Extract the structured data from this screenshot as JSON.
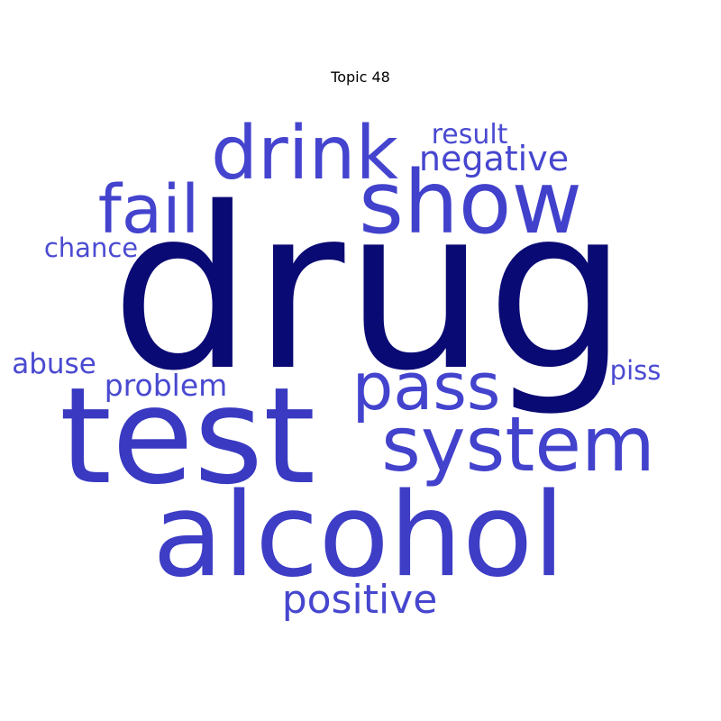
{
  "title": "Topic 48",
  "colors": {
    "background": "#ffffff",
    "primary_word": "#0a0a74",
    "secondary_word": "#3d3dc8",
    "light_word": "#4646cf"
  },
  "words": [
    {
      "id": "drug",
      "text": "drug",
      "weight": 1.0,
      "color": "#0a0a74"
    },
    {
      "id": "test",
      "text": "test",
      "weight": 0.62,
      "color": "#3939c2"
    },
    {
      "id": "alcohol",
      "text": "alcohol",
      "weight": 0.55,
      "color": "#3d3dc6"
    },
    {
      "id": "show",
      "text": "show",
      "weight": 0.44,
      "color": "#4141cc"
    },
    {
      "id": "system",
      "text": "system",
      "weight": 0.4,
      "color": "#4242cc"
    },
    {
      "id": "drink",
      "text": "drink",
      "weight": 0.38,
      "color": "#4444cf"
    },
    {
      "id": "fail",
      "text": "fail",
      "weight": 0.34,
      "color": "#4343ce"
    },
    {
      "id": "pass",
      "text": "pass",
      "weight": 0.34,
      "color": "#4343ce"
    },
    {
      "id": "positive",
      "text": "positive",
      "weight": 0.21,
      "color": "#4646cf"
    },
    {
      "id": "negative",
      "text": "negative",
      "weight": 0.18,
      "color": "#4646cf"
    },
    {
      "id": "problem",
      "text": "problem",
      "weight": 0.15,
      "color": "#4949d1"
    },
    {
      "id": "result",
      "text": "result",
      "weight": 0.14,
      "color": "#4a4ad1"
    },
    {
      "id": "abuse",
      "text": "abuse",
      "weight": 0.14,
      "color": "#4a4ad1"
    },
    {
      "id": "chance",
      "text": "chance",
      "weight": 0.13,
      "color": "#4b4bd2"
    },
    {
      "id": "piss",
      "text": "piss",
      "weight": 0.13,
      "color": "#4b4bd2"
    }
  ]
}
